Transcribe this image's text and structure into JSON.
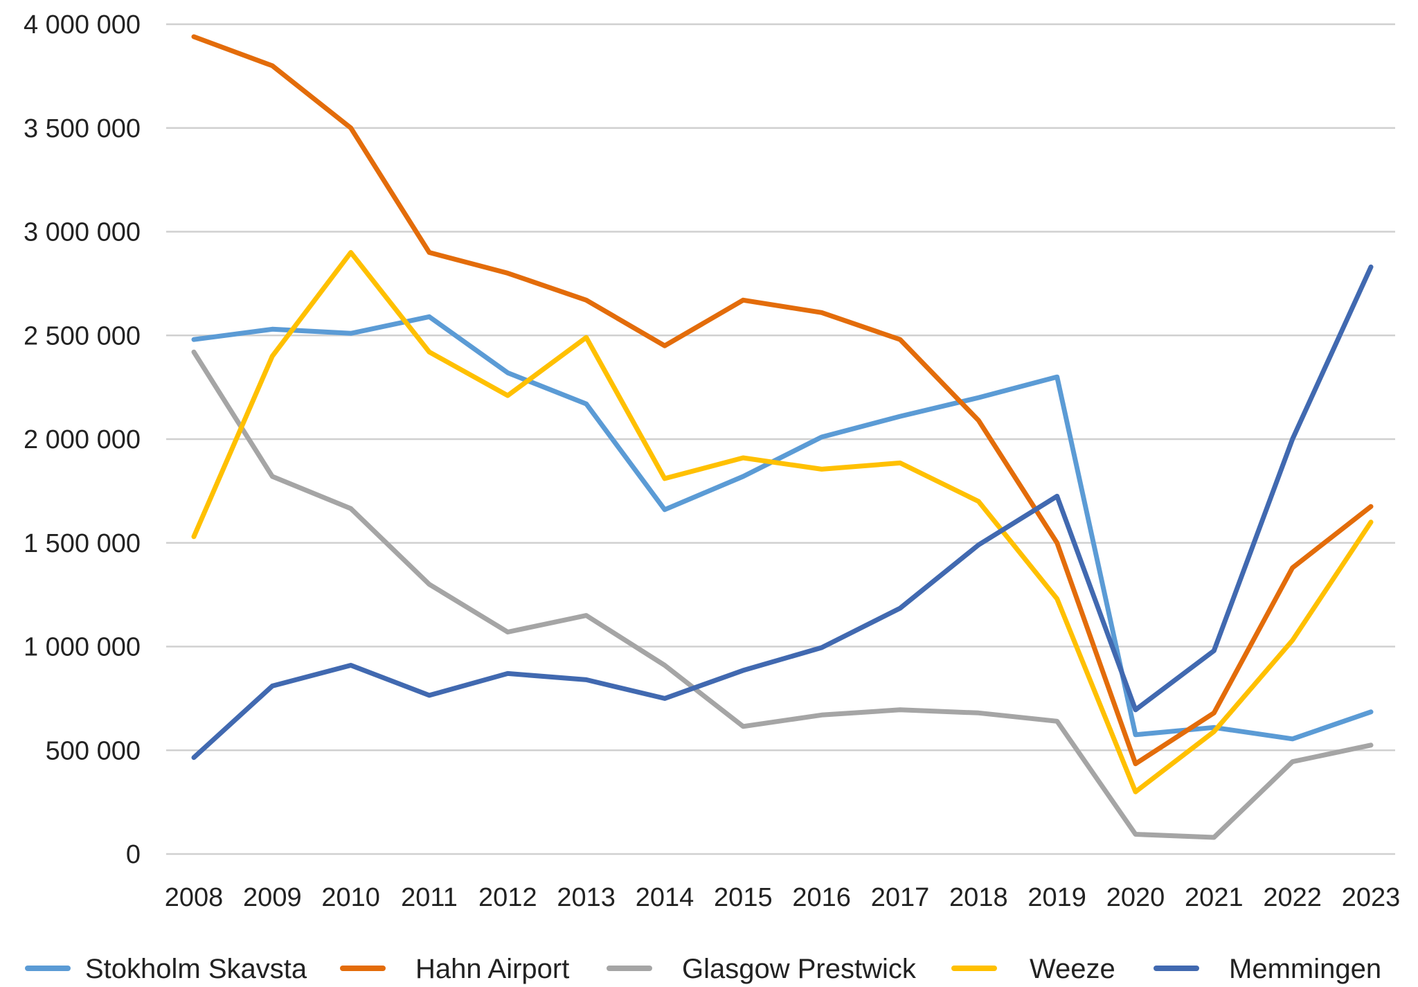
{
  "chart_data": {
    "type": "line",
    "title": "",
    "xlabel": "",
    "ylabel": "",
    "x": [
      "2008",
      "2009",
      "2010",
      "2011",
      "2012",
      "2013",
      "2014",
      "2015",
      "2016",
      "2017",
      "2018",
      "2019",
      "2020",
      "2021",
      "2022",
      "2023"
    ],
    "ylim": [
      0,
      4000000
    ],
    "y_ticks": [
      {
        "value": 0,
        "label": "0"
      },
      {
        "value": 500000,
        "label": "500 000"
      },
      {
        "value": 1000000,
        "label": "1 000 000"
      },
      {
        "value": 1500000,
        "label": "1 500 000"
      },
      {
        "value": 2000000,
        "label": "2 000 000"
      },
      {
        "value": 2500000,
        "label": "2 500 000"
      },
      {
        "value": 3000000,
        "label": "3 000 000"
      },
      {
        "value": 3500000,
        "label": "3 500 000"
      },
      {
        "value": 4000000,
        "label": "4 000 000"
      }
    ],
    "grid": "horizontal",
    "legend_position": "bottom",
    "series": [
      {
        "name": "Stokholm Skavsta",
        "color": "#5b9bd5",
        "values": [
          2480000,
          2530000,
          2510000,
          2590000,
          2320000,
          2170000,
          1660000,
          1820000,
          2010000,
          2110000,
          2200000,
          2300000,
          575000,
          610000,
          555000,
          685000
        ]
      },
      {
        "name": "Hahn Airport",
        "color": "#e36c0a",
        "values": [
          3940000,
          3800000,
          3500000,
          2900000,
          2800000,
          2670000,
          2450000,
          2670000,
          2610000,
          2480000,
          2090000,
          1500000,
          435000,
          680000,
          1380000,
          1675000
        ]
      },
      {
        "name": "Glasgow Prestwick",
        "color": "#a5a5a5",
        "values": [
          2420000,
          1820000,
          1665000,
          1300000,
          1070000,
          1150000,
          910000,
          615000,
          670000,
          695000,
          680000,
          640000,
          95000,
          80000,
          445000,
          525000
        ]
      },
      {
        "name": "Weeze",
        "color": "#ffc000",
        "values": [
          1530000,
          2400000,
          2900000,
          2420000,
          2210000,
          2490000,
          1810000,
          1910000,
          1855000,
          1885000,
          1700000,
          1230000,
          300000,
          590000,
          1030000,
          1600000
        ]
      },
      {
        "name": "Memmingen",
        "color": "#4169b0",
        "values": [
          465000,
          810000,
          910000,
          765000,
          870000,
          840000,
          750000,
          885000,
          995000,
          1185000,
          1490000,
          1725000,
          695000,
          980000,
          2000000,
          2830000
        ]
      }
    ]
  }
}
